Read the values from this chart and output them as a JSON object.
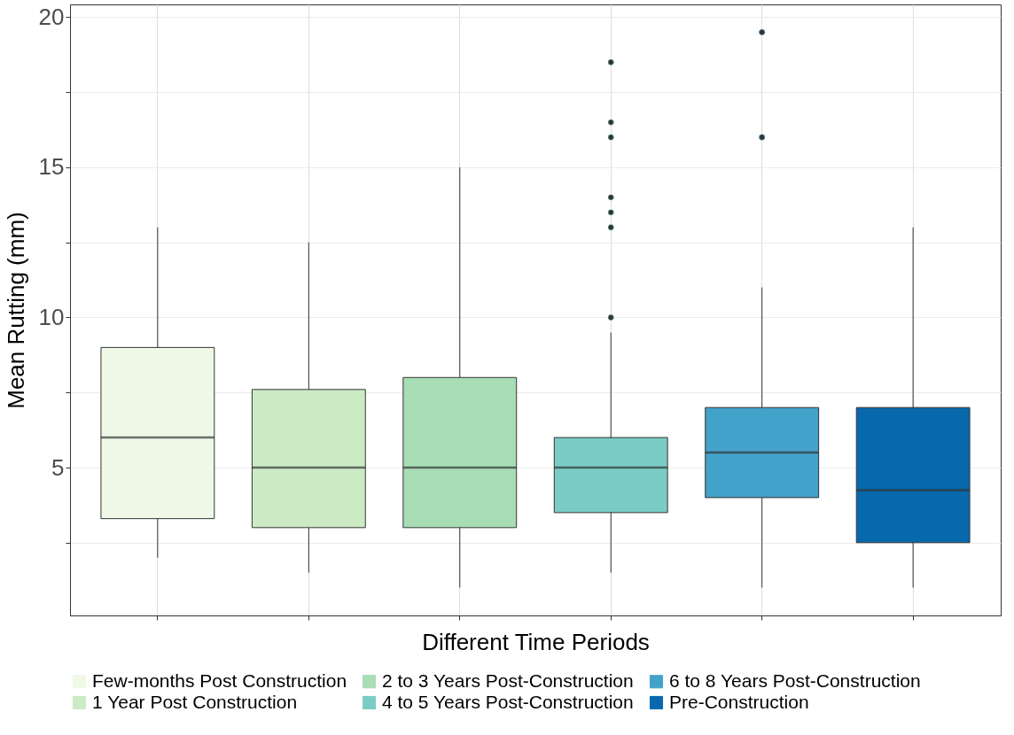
{
  "chart_data": {
    "type": "box",
    "xlabel": "Different Time Periods",
    "ylabel": "Mean Rutting (mm)",
    "categories": [
      null,
      null,
      null,
      null,
      null,
      null
    ],
    "series": [
      {
        "name": "Few-months Post Construction",
        "color": "#f0f9e8",
        "boxes": [
          {
            "low": 2,
            "q1": 3.3,
            "median": 6,
            "q3": 9,
            "high": 13
          },
          null,
          null,
          null,
          null,
          null
        ]
      },
      {
        "name": "1 Year Post Construction",
        "color": "#ccebc5",
        "boxes": [
          null,
          {
            "low": 1.5,
            "q1": 3,
            "median": 5,
            "q3": 7.6,
            "high": 12.5
          },
          null,
          null,
          null,
          null
        ]
      },
      {
        "name": "2 to 3 Years Post-Construction",
        "color": "#a8ddb5",
        "boxes": [
          null,
          null,
          {
            "low": 1,
            "q1": 3,
            "median": 5,
            "q3": 8,
            "high": 15
          },
          null,
          null,
          null
        ]
      },
      {
        "name": "4 to 5 Years Post-Construction",
        "color": "#7bccc4",
        "boxes": [
          null,
          null,
          null,
          {
            "low": 1.5,
            "q1": 3.5,
            "median": 5,
            "q3": 6,
            "high": 9.5,
            "outliers": [
              10,
              13,
              13.5,
              14,
              16,
              16.5,
              18.5
            ]
          },
          null,
          null
        ]
      },
      {
        "name": "6 to 8 Years Post-Construction",
        "color": "#43a2ca",
        "boxes": [
          null,
          null,
          null,
          null,
          {
            "low": 1,
            "q1": 4,
            "median": 5.5,
            "q3": 7,
            "high": 11,
            "outliers": [
              16,
              19.5
            ]
          },
          null
        ]
      },
      {
        "name": "Pre-Construction",
        "color": "#0868ac",
        "boxes": [
          null,
          null,
          null,
          null,
          null,
          {
            "low": 1,
            "q1": 2.5,
            "median": 4.25,
            "q3": 7,
            "high": 13
          }
        ]
      }
    ],
    "ylim": [
      0.075,
      20.425
    ],
    "yticks": [
      {
        "value": 2.5,
        "label": null
      },
      5,
      {
        "value": 7.5,
        "label": null
      },
      10,
      {
        "value": 12.5,
        "label": null
      },
      15,
      {
        "value": 17.5,
        "label": null
      },
      20
    ],
    "grid": true,
    "legend": "bottom",
    "tick_labels": "y"
  }
}
